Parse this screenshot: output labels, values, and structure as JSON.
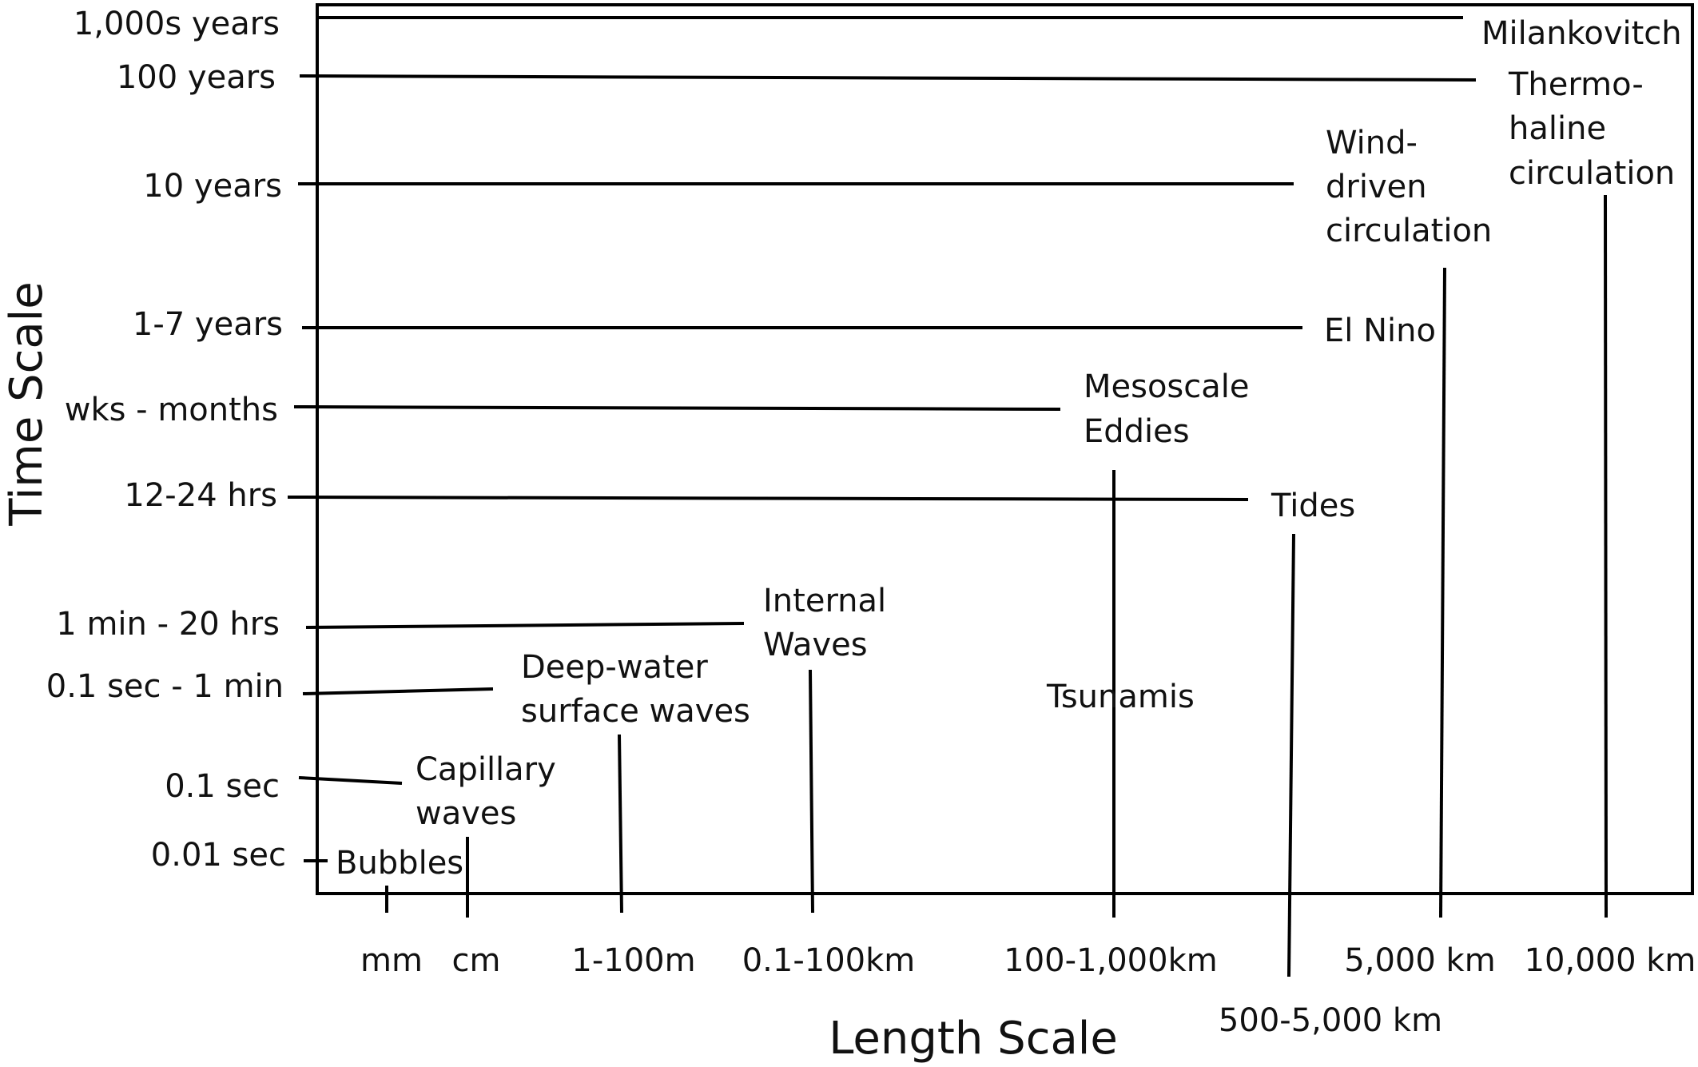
{
  "axes": {
    "x_title": "Length Scale",
    "y_title": "Time Scale"
  },
  "time_ticks": [
    "1,000s years",
    "100 years",
    "10 years",
    "1-7 years",
    "wks - months",
    "12-24 hrs",
    "1 min - 20 hrs",
    "0.1 sec - 1 min",
    "0.1 sec",
    "0.01 sec"
  ],
  "length_ticks": [
    "mm",
    "cm",
    "1-100m",
    "0.1-100km",
    "100-1,000km",
    "500-5,000 km",
    "5,000 km",
    "10,000 km"
  ],
  "phenomena": [
    {
      "id": "bubbles",
      "lines": [
        "Bubbles"
      ],
      "time": "0.01 sec",
      "length": "mm"
    },
    {
      "id": "capillary-waves",
      "lines": [
        "Capillary",
        "waves"
      ],
      "time": "0.1 sec",
      "length": "cm"
    },
    {
      "id": "deep-water-surface-waves",
      "lines": [
        "Deep-water",
        "surface waves"
      ],
      "time": "0.1 sec - 1 min",
      "length": "1-100m"
    },
    {
      "id": "internal-waves",
      "lines": [
        "Internal",
        "Waves"
      ],
      "time": "1 min - 20 hrs",
      "length": "0.1-100km"
    },
    {
      "id": "tsunamis",
      "lines": [
        "Tsunamis"
      ],
      "time": "",
      "length": "100-1,000km"
    },
    {
      "id": "tides",
      "lines": [
        "Tides"
      ],
      "time": "12-24 hrs",
      "length": "500-5,000 km"
    },
    {
      "id": "mesoscale-eddies",
      "lines": [
        "Mesoscale",
        "Eddies"
      ],
      "time": "wks - months",
      "length": "100-1,000km"
    },
    {
      "id": "el-nino",
      "lines": [
        "El Nino"
      ],
      "time": "1-7 years",
      "length": ""
    },
    {
      "id": "wind-driven-circulation",
      "lines": [
        "Wind-",
        "driven",
        "circulation"
      ],
      "time": "10 years",
      "length": "5,000 km"
    },
    {
      "id": "thermohaline-circulation",
      "lines": [
        "Thermo-",
        "haline",
        "circulation"
      ],
      "time": "100 years",
      "length": "10,000 km"
    },
    {
      "id": "milankovitch",
      "lines": [
        "Milankovitch"
      ],
      "time": "1,000s years",
      "length": ""
    }
  ]
}
